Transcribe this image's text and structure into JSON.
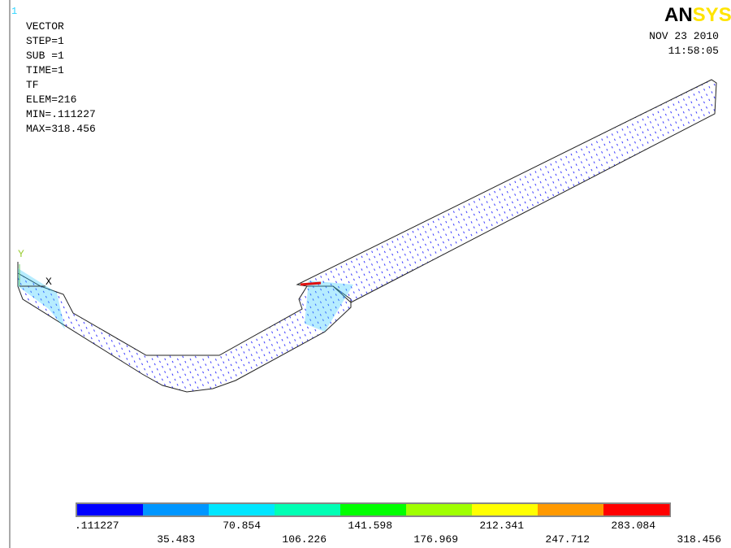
{
  "window_number": "1",
  "info_lines": [
    "VECTOR",
    "STEP=1",
    "SUB =1",
    "TIME=1",
    "TF",
    "ELEM=216",
    "MIN=.111227",
    "MAX=318.456"
  ],
  "logo": {
    "left": "AN",
    "right": "SYS"
  },
  "date": "NOV 23 2010",
  "time": "11:58:05",
  "triad": {
    "y": "Y",
    "x": "X"
  },
  "legend": {
    "colors": [
      "#0000ff",
      "#0096ff",
      "#00e6ff",
      "#00ffb4",
      "#00ff00",
      "#a0ff00",
      "#ffff00",
      "#ff9900",
      "#ff0000"
    ],
    "labels": [
      ".111227",
      "35.483",
      "70.854",
      "106.226",
      "141.598",
      "176.969",
      "212.341",
      "247.712",
      "283.084",
      "318.456"
    ]
  }
}
